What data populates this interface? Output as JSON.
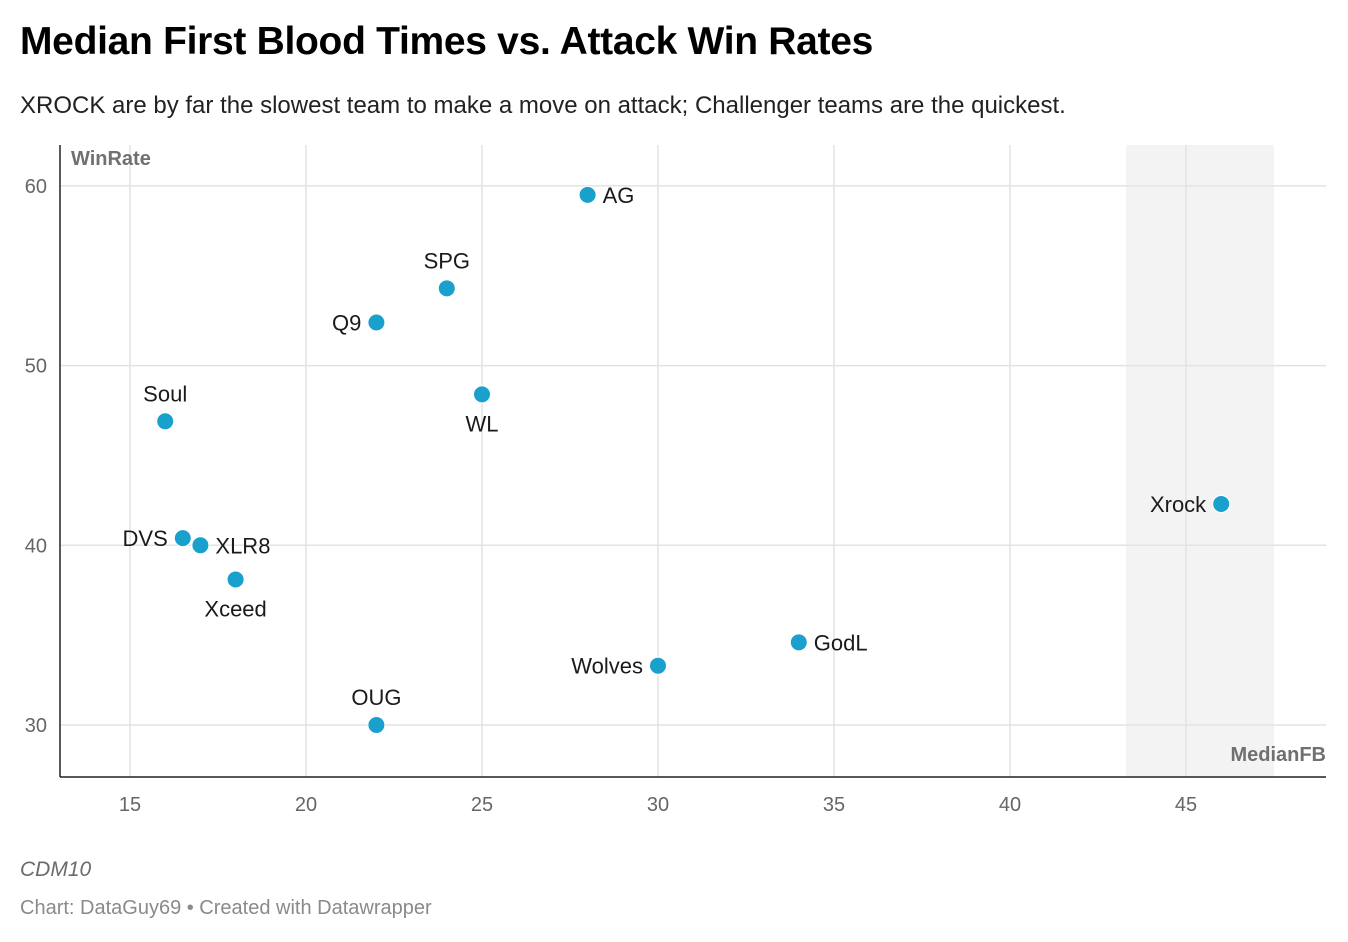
{
  "title": "Median First Blood Times vs. Attack Win Rates",
  "subtitle": "XROCK are by far the slowest team to make a move on attack; Challenger teams are the quickest.",
  "note": "CDM10",
  "source": "Chart: DataGuy69 • Created with Datawrapper",
  "colors": {
    "point": "#1aa0cc",
    "grid": "#e3e3e3",
    "highlight_band": "#f3f3f3",
    "axis_label": "#707070",
    "tick": "#666666"
  },
  "chart_data": {
    "type": "scatter",
    "xlabel": "MedianFB",
    "ylabel": "WinRate",
    "xlim": [
      13,
      49
    ],
    "ylim": [
      27.5,
      63
    ],
    "xticks": [
      15,
      20,
      25,
      30,
      35,
      40,
      45
    ],
    "yticks": [
      30,
      40,
      50,
      60
    ],
    "highlight_range_x": [
      43.3,
      47.5
    ],
    "points": [
      {
        "label": "AG",
        "x": 28,
        "y": 59.5,
        "label_pos": "right"
      },
      {
        "label": "SPG",
        "x": 24,
        "y": 54.3,
        "label_pos": "top"
      },
      {
        "label": "Q9",
        "x": 22,
        "y": 52.4,
        "label_pos": "left"
      },
      {
        "label": "WL",
        "x": 25,
        "y": 48.4,
        "label_pos": "bottom"
      },
      {
        "label": "Soul",
        "x": 16,
        "y": 46.9,
        "label_pos": "top"
      },
      {
        "label": "Xrock",
        "x": 46,
        "y": 42.3,
        "label_pos": "left"
      },
      {
        "label": "DVS",
        "x": 16.5,
        "y": 40.4,
        "label_pos": "left"
      },
      {
        "label": "XLR8",
        "x": 17,
        "y": 40,
        "label_pos": "right"
      },
      {
        "label": "Xceed",
        "x": 18,
        "y": 38.1,
        "label_pos": "bottom"
      },
      {
        "label": "GodL",
        "x": 34,
        "y": 34.6,
        "label_pos": "right"
      },
      {
        "label": "Wolves",
        "x": 30,
        "y": 33.3,
        "label_pos": "left"
      },
      {
        "label": "OUG",
        "x": 22,
        "y": 30,
        "label_pos": "top"
      }
    ]
  }
}
